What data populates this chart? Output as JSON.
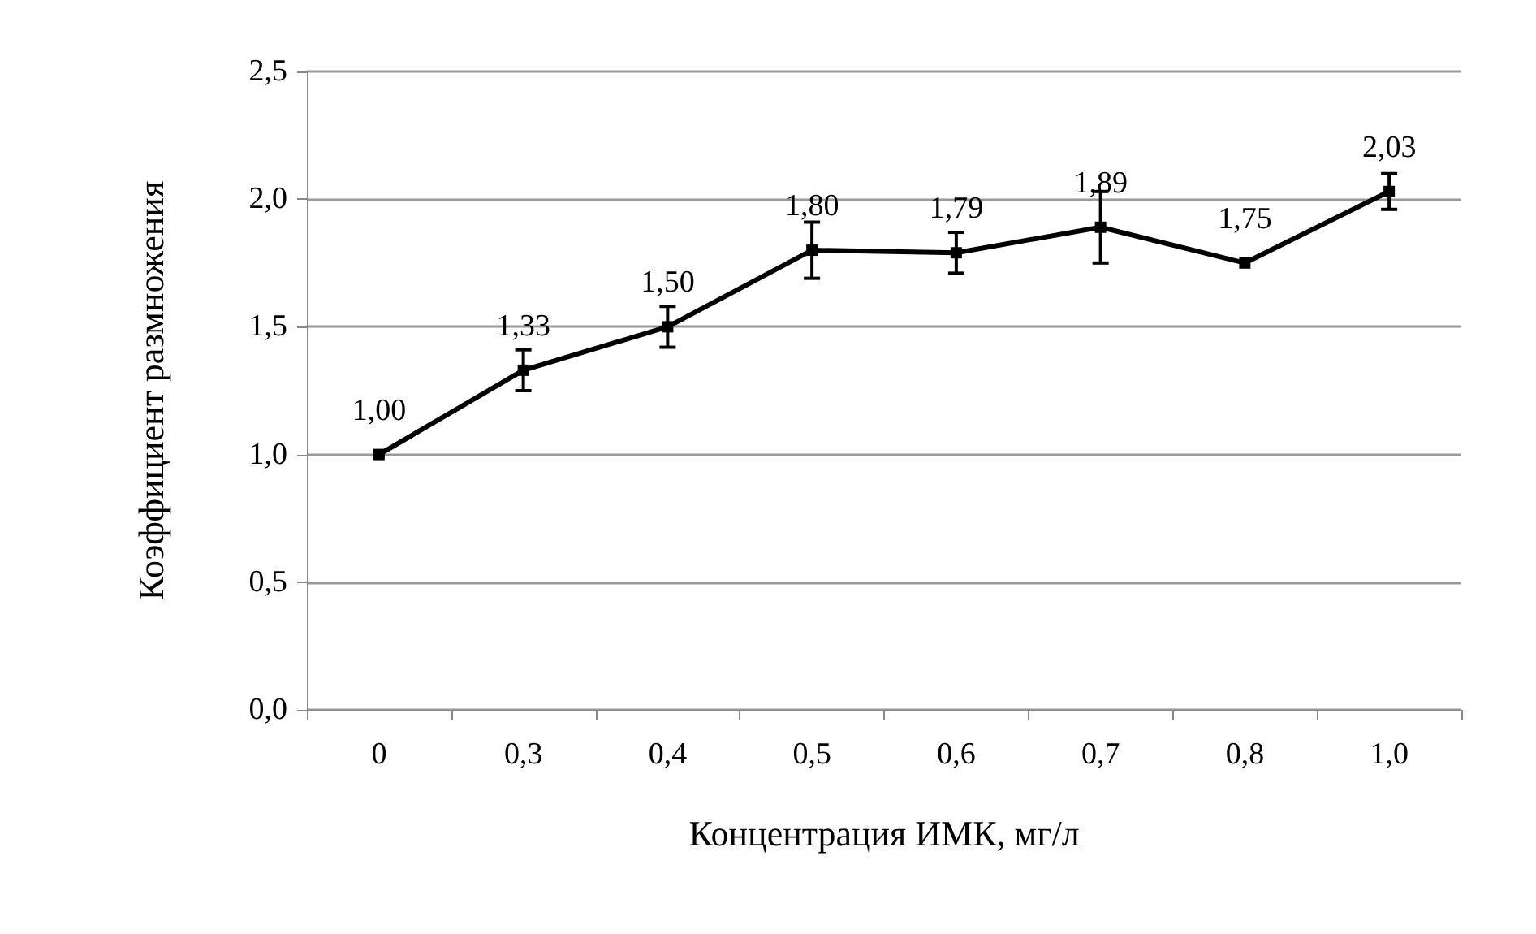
{
  "chart_data": {
    "type": "line",
    "xlabel": "Концентрация ИМК, мг/л",
    "ylabel": "Коэффициент размножения",
    "categories": [
      "0",
      "0,3",
      "0,4",
      "0,5",
      "0,6",
      "0,7",
      "0,8",
      "1,0"
    ],
    "series": [
      {
        "color": "#000000",
        "values": [
          1.0,
          1.33,
          1.5,
          1.8,
          1.79,
          1.89,
          1.75,
          2.03
        ],
        "errors": [
          null,
          0.08,
          0.08,
          0.11,
          0.08,
          0.14,
          null,
          0.07
        ],
        "value_labels": [
          "1,00",
          "1,33",
          "1,50",
          "1,80",
          "1,79",
          "1,89",
          "1,75",
          "2,03"
        ]
      }
    ],
    "ylim": [
      0,
      2.5
    ],
    "yticks": [
      {
        "value": 0,
        "label": "0,0"
      },
      {
        "value": 0.5,
        "label": "0,5"
      },
      {
        "value": 1,
        "label": "1,0"
      },
      {
        "value": 1.5,
        "label": "1,5"
      },
      {
        "value": 2,
        "label": "2,0"
      },
      {
        "value": 2.5,
        "label": "2,5"
      }
    ],
    "grid": "y",
    "marker": "square",
    "line_style": "solid"
  }
}
